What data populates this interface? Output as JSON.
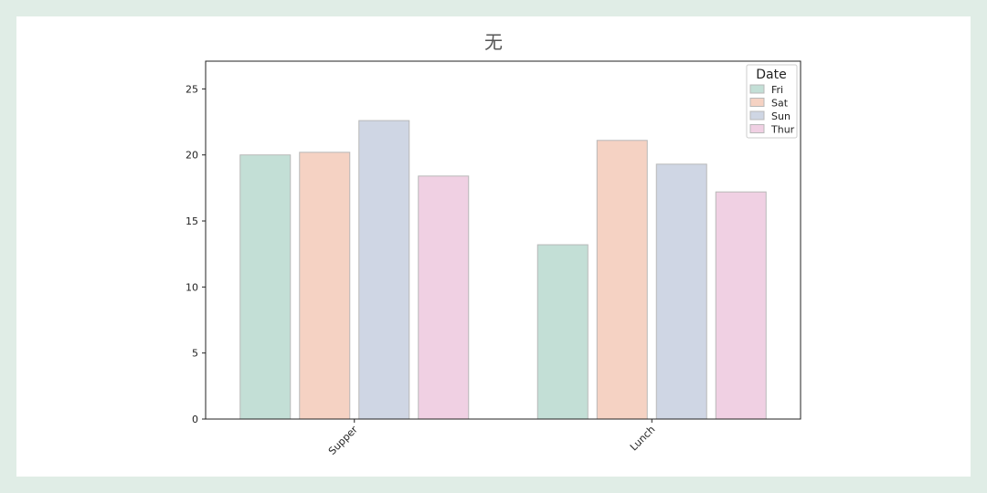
{
  "chart_data": {
    "type": "bar",
    "title": "无",
    "xlabel": "",
    "ylabel": "",
    "categories": [
      "Supper",
      "Lunch"
    ],
    "series": [
      {
        "name": "Fri",
        "values": [
          20.0,
          13.2
        ],
        "color": "#c3dfd6"
      },
      {
        "name": "Sat",
        "values": [
          20.2,
          21.1
        ],
        "color": "#f5d2c3"
      },
      {
        "name": "Sun",
        "values": [
          22.6,
          19.3
        ],
        "color": "#cfd6e4"
      },
      {
        "name": "Thur",
        "values": [
          18.4,
          17.2
        ],
        "color": "#f0d0e3"
      }
    ],
    "ylim": [
      0,
      27.1
    ],
    "yticks": [
      "0",
      "5",
      "10",
      "15",
      "20",
      "25"
    ],
    "legend": {
      "title": "Date",
      "placement": "top-right"
    },
    "grid": false
  }
}
